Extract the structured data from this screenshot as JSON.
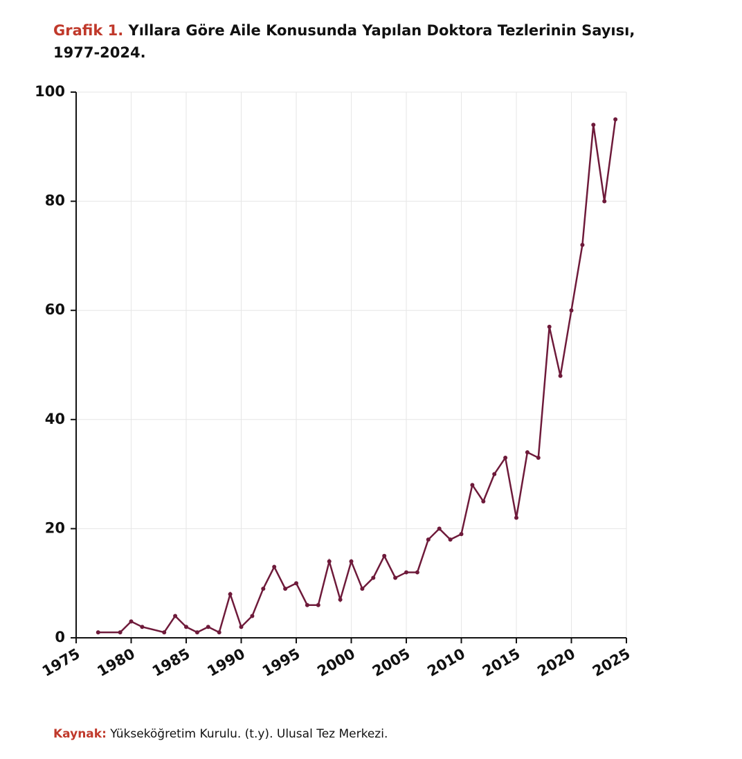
{
  "chart_data": {
    "type": "line",
    "title_label": "Grafik 1.",
    "title": "Yıllara Göre Aile Konusunda Yapılan Doktora Tezlerinin Sayısı,",
    "title_line2": "1977-2024.",
    "source_label": "Kaynak:",
    "source": "Yükseköğretim Kurulu. (t.y). Ulusal Tez Merkezi.",
    "x": [
      1977,
      1979,
      1980,
      1981,
      1983,
      1984,
      1985,
      1986,
      1987,
      1988,
      1989,
      1990,
      1991,
      1992,
      1993,
      1994,
      1995,
      1996,
      1997,
      1998,
      1999,
      2000,
      2001,
      2002,
      2003,
      2004,
      2005,
      2006,
      2007,
      2008,
      2009,
      2010,
      2011,
      2012,
      2013,
      2014,
      2015,
      2016,
      2017,
      2018,
      2019,
      2020,
      2021,
      2022,
      2023,
      2024
    ],
    "series": [
      {
        "name": "Doktora tezleri",
        "color": "#6e1a3a",
        "values": [
          1,
          1,
          3,
          2,
          1,
          4,
          2,
          1,
          2,
          1,
          8,
          2,
          4,
          9,
          13,
          9,
          10,
          6,
          6,
          14,
          7,
          14,
          9,
          11,
          15,
          11,
          12,
          12,
          18,
          20,
          18,
          19,
          28,
          25,
          30,
          33,
          22,
          34,
          33,
          57,
          48,
          60,
          72,
          94,
          80,
          95
        ]
      }
    ],
    "xlim": [
      1975,
      2025
    ],
    "xticks": [
      1975,
      1980,
      1985,
      1990,
      1995,
      2000,
      2005,
      2010,
      2015,
      2020,
      2025
    ],
    "ylim": [
      0,
      100
    ],
    "yticks": [
      0,
      20,
      40,
      60,
      80,
      100
    ],
    "grid": true
  }
}
